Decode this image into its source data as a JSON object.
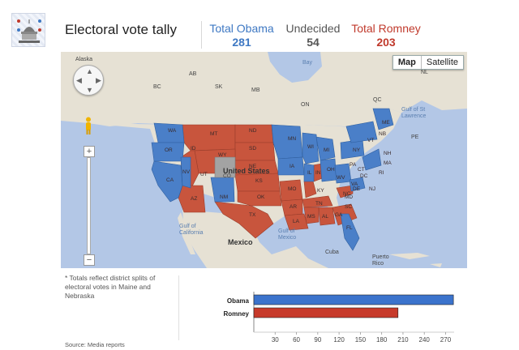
{
  "header": {
    "title": "Electoral vote tally",
    "totals": [
      {
        "key": "obama",
        "label": "Total Obama",
        "value": "281"
      },
      {
        "key": "undecided",
        "label": "Undecided",
        "value": "54"
      },
      {
        "key": "romney",
        "label": "Total Romney",
        "value": "203"
      }
    ]
  },
  "map": {
    "type_controls": {
      "map_label": "Map",
      "satellite_label": "Satellite"
    },
    "colors": {
      "obama": "#4a7fc8",
      "romney": "#c8553d",
      "undecided": "#a3a3a3",
      "water": "#b3c7e6",
      "land": "#e6e1d4"
    },
    "region_labels": [
      "Alaska",
      "AB",
      "SK",
      "MB",
      "BC",
      "NL",
      "ON",
      "QC",
      "Gulf of St Lawrence",
      "PE",
      "Gulf of Mexico",
      "Gulf of California",
      "Mexico",
      "Cuba",
      "Puerto Rico",
      "United States",
      "CO",
      "Bay"
    ],
    "states": [
      "WA",
      "OR",
      "CA",
      "NV",
      "ID",
      "MT",
      "WY",
      "UT",
      "AZ",
      "NM",
      "CO",
      "ND",
      "SD",
      "NE",
      "KS",
      "OK",
      "TX",
      "MN",
      "IA",
      "MO",
      "AR",
      "LA",
      "WI",
      "IL",
      "IN",
      "MI",
      "OH",
      "KY",
      "TN",
      "MS",
      "AL",
      "GA",
      "FL",
      "SC",
      "NC",
      "VA",
      "WV",
      "PA",
      "NY",
      "ME",
      "VT",
      "NH",
      "MA",
      "RI",
      "CT",
      "NJ",
      "DE",
      "MD",
      "DC",
      "NB"
    ]
  },
  "notes": {
    "district_note": "* Totals reflect district splits of electoral votes in Maine and Nebraska",
    "source": "Source: Media reports"
  },
  "chart_data": {
    "type": "bar",
    "orientation": "horizontal",
    "categories": [
      "Obama",
      "Romney"
    ],
    "values": [
      281,
      203
    ],
    "colors": [
      "#3b73cc",
      "#c73a2a"
    ],
    "xlim": [
      0,
      282
    ],
    "xticks": [
      30,
      60,
      90,
      120,
      150,
      180,
      210,
      240,
      270
    ]
  }
}
